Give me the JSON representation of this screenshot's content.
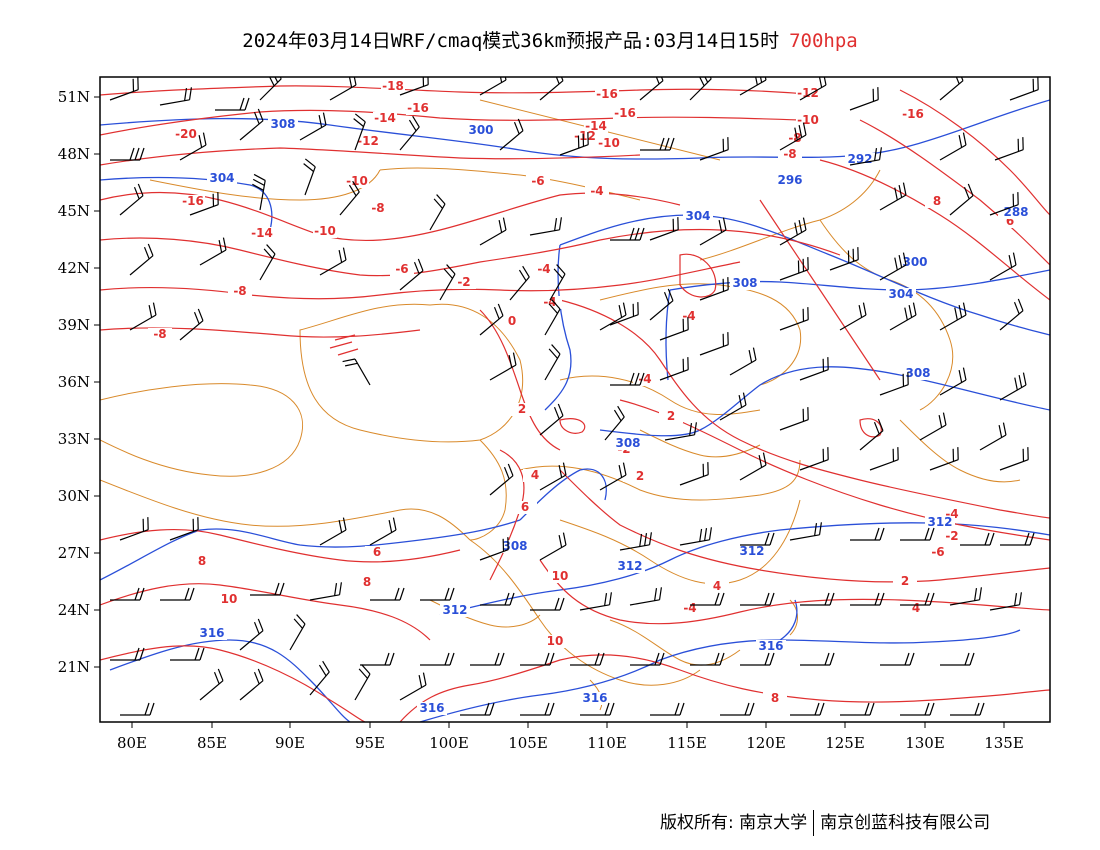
{
  "title": {
    "main": "2024年03月14日WRF/cmaq模式36km预报产品:03月14日15时",
    "level": "700hpa"
  },
  "colors": {
    "temperature_contour": "#e03030",
    "height_contour": "#2a4fd8",
    "boundary": "#d98a2b",
    "wind_barb": "#000000"
  },
  "map": {
    "lat_labels": [
      "51N",
      "48N",
      "45N",
      "42N",
      "39N",
      "36N",
      "33N",
      "30N",
      "27N",
      "24N",
      "21N"
    ],
    "lon_labels": [
      "80E",
      "85E",
      "90E",
      "95E",
      "100E",
      "105E",
      "110E",
      "115E",
      "120E",
      "125E",
      "130E",
      "135E"
    ],
    "temperature_labels": [
      "-18",
      "-16",
      "-16",
      "-16",
      "-12",
      "-20",
      "-14",
      "-14",
      "-12",
      "-10",
      "-10",
      "-8",
      "-8",
      "-16",
      "-12",
      "-10",
      "-6",
      "-4",
      "-16",
      "-14",
      "-10",
      "-8",
      "-4",
      "-8",
      "-6",
      "-2",
      "-4",
      "0",
      "-8",
      "-4",
      "-4",
      "2",
      "2",
      "-2",
      "4",
      "6",
      "-2",
      "8",
      "6",
      "8",
      "10",
      "10",
      "10",
      "6",
      "4",
      "2",
      "-4",
      "-6",
      "-2",
      "4",
      "-4",
      "2",
      "6",
      "8",
      "8"
    ],
    "height_labels": [
      "308",
      "300",
      "304",
      "304",
      "292",
      "296",
      "288",
      "300",
      "304",
      "308",
      "308",
      "308",
      "308",
      "312",
      "312",
      "312",
      "312",
      "316",
      "316",
      "316",
      "316"
    ]
  },
  "footer": {
    "copyright": "版权所有: 南京大学",
    "company": "南京创蓝科技有限公司"
  }
}
